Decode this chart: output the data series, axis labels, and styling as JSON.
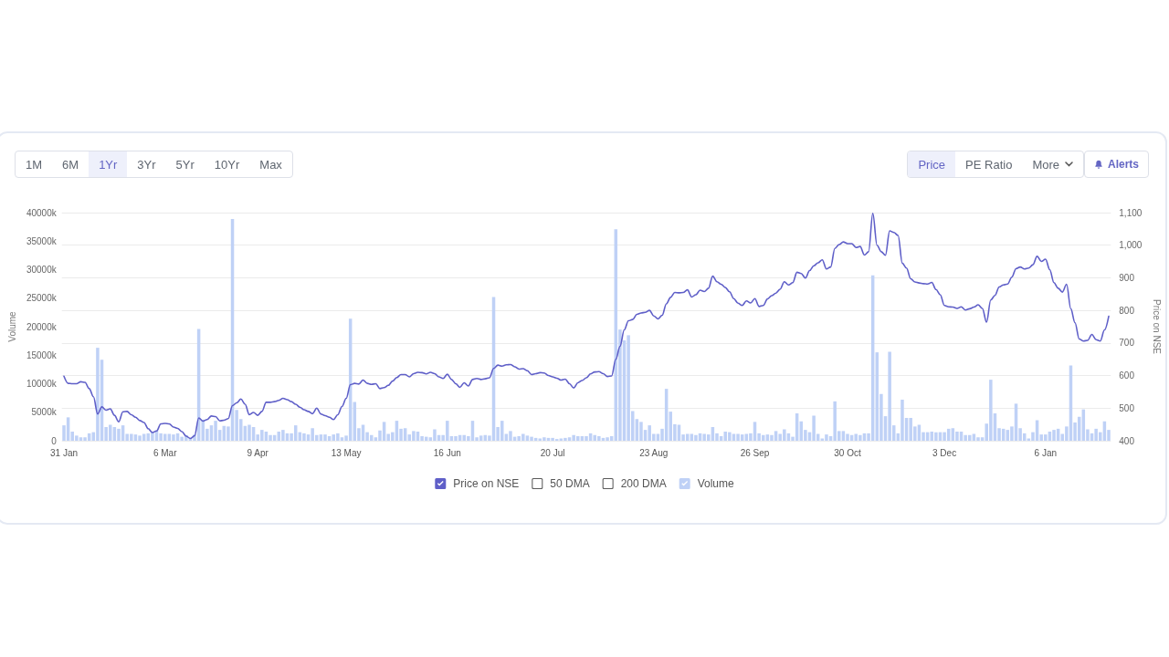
{
  "chart_data": {
    "type": "line",
    "categories": [
      "31 Jan",
      null,
      null,
      null,
      null,
      null,
      null,
      null,
      null,
      null,
      null,
      null,
      null,
      null,
      null,
      null,
      null,
      null,
      null,
      null,
      null,
      null,
      null,
      null,
      "6 Mar",
      null,
      null,
      null,
      null,
      null,
      null,
      null,
      null,
      null,
      null,
      null,
      null,
      null,
      null,
      null,
      null,
      null,
      null,
      null,
      null,
      null,
      "9 Apr",
      null,
      null,
      null,
      null,
      null,
      null,
      null,
      null,
      null,
      null,
      null,
      null,
      null,
      null,
      null,
      null,
      null,
      null,
      null,
      null,
      "13 May",
      null,
      null,
      null,
      null,
      null,
      null,
      null,
      null,
      null,
      null,
      null,
      null,
      null,
      null,
      null,
      null,
      null,
      null,
      null,
      null,
      null,
      null,
      null,
      "16 Jun",
      null,
      null,
      null,
      null,
      null,
      null,
      null,
      null,
      null,
      null,
      null,
      null,
      null,
      null,
      null,
      null,
      null,
      null,
      null,
      null,
      null,
      null,
      null,
      null,
      "20 Jul",
      null,
      null,
      null,
      null,
      null,
      null,
      null,
      null,
      null,
      null,
      null,
      null,
      null,
      null,
      null,
      null,
      null,
      null,
      null,
      null,
      null,
      null,
      null,
      "23 Aug",
      null,
      null,
      null,
      null,
      null,
      null,
      null,
      null,
      null,
      null,
      null,
      null,
      null,
      null,
      null,
      null,
      null,
      null,
      null,
      null,
      null,
      null,
      null,
      "26 Sep",
      null,
      null,
      null,
      null,
      null,
      null,
      null,
      null,
      null,
      null,
      null,
      null,
      null,
      null,
      null,
      null,
      null,
      null,
      null,
      null,
      null,
      "30 Oct",
      null,
      null,
      null,
      null,
      null,
      null,
      null,
      null,
      null,
      null,
      null,
      null,
      null,
      null,
      null,
      null,
      null,
      null,
      null,
      null,
      null,
      null,
      "3 Dec",
      null,
      null,
      null,
      null,
      null,
      null,
      null,
      null,
      null,
      null,
      null,
      null,
      null,
      null,
      null,
      null,
      null,
      null,
      null,
      null,
      null,
      null,
      null,
      "6 Jan",
      null,
      null,
      null,
      null,
      null,
      null,
      null,
      null,
      null,
      null,
      null,
      null,
      null,
      null,
      null
    ],
    "ylabel": "Volume",
    "y2label": "Price on NSE",
    "ylim": [
      0,
      40000
    ],
    "yticks": [
      0,
      {
        "value": 5000,
        "label": "5000k"
      },
      {
        "value": 10000,
        "label": "10000k"
      },
      {
        "value": 15000,
        "label": "15000k"
      },
      {
        "value": 20000,
        "label": "20000k"
      },
      {
        "value": 25000,
        "label": "25000k"
      },
      {
        "value": 30000,
        "label": "30000k"
      },
      {
        "value": 35000,
        "label": "35000k"
      },
      {
        "value": 40000,
        "label": "40000k"
      }
    ],
    "y2lim": [
      400,
      1100
    ],
    "y2ticks": [
      400,
      500,
      600,
      700,
      800,
      900,
      {
        "value": 1000,
        "label": "1,000"
      },
      {
        "value": 1100,
        "label": "1,100"
      }
    ],
    "grid": "y2",
    "legend": "bottom",
    "annotations": [
      "1M",
      "6M",
      "1Yr",
      "3Yr",
      "5Yr",
      "10Yr",
      "Max",
      "Price",
      "PE Ratio",
      "More",
      "Alerts"
    ],
    "series": [
      {
        "name": "Price on NSE",
        "axis": "y2",
        "color": "#5f5fc8",
        "values": [
          598,
          576,
          575,
          575,
          581,
          579,
          560,
          535,
          482,
          504,
          494,
          498,
          478,
          458,
          489,
          490,
          480,
          472,
          462,
          456,
          437,
          425,
          430,
          452,
          453,
          452,
          442,
          438,
          428,
          414,
          407,
          415,
          470,
          460,
          465,
          476,
          474,
          461,
          463,
          468,
          508,
          516,
          528,
          512,
          480,
          487,
          478,
          490,
          518,
          518,
          520,
          524,
          530,
          526,
          520,
          512,
          503,
          495,
          490,
          483,
          500,
          482,
          477,
          472,
          465,
          480,
          505,
          530,
          572,
          576,
          574,
          586,
          576,
          573,
          575,
          560,
          563,
          570,
          583,
          594,
          603,
          603,
          596,
          606,
          610,
          609,
          605,
          610,
          606,
          596,
          591,
          604,
          588,
          575,
          564,
          578,
          568,
          588,
          591,
          588,
          590,
          593,
          622,
          632,
          629,
          633,
          634,
          627,
          620,
          621,
          615,
          603,
          606,
          609,
          608,
          600,
          596,
          592,
          586,
          589,
          575,
          562,
          578,
          585,
          593,
          605,
          611,
          612,
          606,
          597,
          599,
          650,
          690,
          740,
          768,
          772,
          788,
          792,
          794,
          800,
          783,
          774,
          785,
          820,
          840,
          855,
          854,
          855,
          863,
          841,
          848,
          862,
          858,
          868,
          905,
          888,
          880,
          870,
          857,
          836,
          822,
          815,
          829,
          823,
          836,
          812,
          815,
          835,
          845,
          853,
          865,
          888,
          878,
          885,
          917,
          913,
          899,
          922,
          937,
          946,
          955,
          927,
          933,
          990,
          1002,
          1010,
          1005,
          1005,
          993,
          996,
          970,
          980,
          1098,
          1000,
          980,
          969,
          1044,
          1039,
          1030,
          945,
          930,
          897,
          887,
          884,
          882,
          881,
          886,
          864,
          848,
          815,
          811,
          810,
          806,
          811,
          801,
          805,
          810,
          817,
          806,
          764,
          832,
          846,
          872,
          878,
          881,
          902,
          928,
          933,
          927,
          930,
          940,
          966,
          950,
          957,
          925,
          885,
          868,
          856,
          880,
          805,
          762,
          712,
          706,
          708,
          726,
          710,
          706,
          740,
          782
        ]
      },
      {
        "name": "50 DMA",
        "axis": "y2",
        "values": [
          null,
          null,
          null,
          null,
          null,
          null,
          null,
          null,
          null,
          null,
          null,
          null,
          null,
          null,
          null,
          null,
          null,
          null,
          null,
          null,
          null,
          null,
          null,
          null,
          null,
          null,
          null,
          null,
          null,
          null,
          null,
          null,
          null,
          null,
          null,
          null,
          null,
          null,
          null,
          null,
          null,
          null,
          null,
          null,
          null,
          null,
          null,
          null,
          null,
          null,
          null,
          null,
          null,
          null,
          null,
          null,
          null,
          null,
          null,
          null,
          null,
          null,
          null,
          null,
          null,
          null,
          null,
          null,
          null,
          null,
          null,
          null,
          null,
          null,
          null,
          null,
          null,
          null,
          null,
          null,
          null,
          null,
          null,
          null,
          null,
          null,
          null,
          null,
          null,
          null,
          null,
          null,
          null,
          null,
          null,
          null,
          null,
          null,
          null,
          null,
          null,
          null,
          null,
          null,
          null,
          null,
          null,
          null,
          null,
          null,
          null,
          null,
          null,
          null,
          null,
          null,
          null,
          null,
          null,
          null,
          null,
          null,
          null,
          null,
          null,
          null,
          null,
          null,
          null,
          null,
          null,
          null,
          null,
          null,
          null,
          null,
          null,
          null,
          null,
          null,
          null,
          null,
          null,
          null,
          null,
          null,
          null,
          null,
          null,
          null,
          null,
          null,
          null,
          null,
          null,
          null,
          null,
          null,
          null,
          null,
          null,
          null,
          null,
          null,
          null,
          null,
          null,
          null,
          null,
          null,
          null,
          null,
          null,
          null,
          null,
          null,
          null,
          null,
          null,
          null,
          null,
          null,
          null,
          null,
          null,
          null,
          null,
          null,
          null,
          null,
          null,
          null,
          null,
          null,
          null,
          null,
          null,
          null,
          null,
          null,
          null,
          null,
          null,
          null,
          null,
          null,
          null,
          null,
          null,
          null,
          null,
          null,
          null,
          null,
          null,
          null,
          null,
          null,
          null,
          null,
          null,
          null,
          null,
          null,
          null,
          null,
          null,
          null,
          null,
          null,
          null,
          null,
          null,
          null,
          null,
          null,
          null,
          null,
          null,
          null,
          null,
          null,
          null,
          null,
          null,
          null,
          null,
          null,
          null
        ]
      },
      {
        "name": "200 DMA",
        "axis": "y2",
        "values": [
          null,
          null,
          null,
          null,
          null,
          null,
          null,
          null,
          null,
          null,
          null,
          null,
          null,
          null,
          null,
          null,
          null,
          null,
          null,
          null,
          null,
          null,
          null,
          null,
          null,
          null,
          null,
          null,
          null,
          null,
          null,
          null,
          null,
          null,
          null,
          null,
          null,
          null,
          null,
          null,
          null,
          null,
          null,
          null,
          null,
          null,
          null,
          null,
          null,
          null,
          null,
          null,
          null,
          null,
          null,
          null,
          null,
          null,
          null,
          null,
          null,
          null,
          null,
          null,
          null,
          null,
          null,
          null,
          null,
          null,
          null,
          null,
          null,
          null,
          null,
          null,
          null,
          null,
          null,
          null,
          null,
          null,
          null,
          null,
          null,
          null,
          null,
          null,
          null,
          null,
          null,
          null,
          null,
          null,
          null,
          null,
          null,
          null,
          null,
          null,
          null,
          null,
          null,
          null,
          null,
          null,
          null,
          null,
          null,
          null,
          null,
          null,
          null,
          null,
          null,
          null,
          null,
          null,
          null,
          null,
          null,
          null,
          null,
          null,
          null,
          null,
          null,
          null,
          null,
          null,
          null,
          null,
          null,
          null,
          null,
          null,
          null,
          null,
          null,
          null,
          null,
          null,
          null,
          null,
          null,
          null,
          null,
          null,
          null,
          null,
          null,
          null,
          null,
          null,
          null,
          null,
          null,
          null,
          null,
          null,
          null,
          null,
          null,
          null,
          null,
          null,
          null,
          null,
          null,
          null,
          null,
          null,
          null,
          null,
          null,
          null,
          null,
          null,
          null,
          null,
          null,
          null,
          null,
          null,
          null,
          null,
          null,
          null,
          null,
          null,
          null,
          null,
          null,
          null,
          null,
          null,
          null,
          null,
          null,
          null,
          null,
          null,
          null,
          null,
          null,
          null,
          null,
          null,
          null,
          null,
          null,
          null,
          null,
          null,
          null,
          null,
          null,
          null,
          null,
          null,
          null,
          null,
          null,
          null,
          null,
          null,
          null,
          null,
          null,
          null,
          null,
          null,
          null,
          null,
          null,
          null,
          null,
          null,
          null,
          null,
          null,
          null,
          null,
          null,
          null,
          null,
          null,
          null,
          null
        ]
      },
      {
        "name": "Volume",
        "type": "bar",
        "color": "#bfd1f6",
        "values": [
          2700,
          4100,
          1600,
          900,
          600,
          600,
          1300,
          1500,
          16300,
          14200,
          2400,
          2800,
          2400,
          2100,
          2700,
          1200,
          1200,
          1100,
          900,
          1200,
          1300,
          1600,
          1800,
          1300,
          1200,
          1200,
          1100,
          1300,
          700,
          1000,
          500,
          1100,
          19600,
          3700,
          2100,
          2700,
          3500,
          1900,
          2600,
          2500,
          38900,
          5400,
          3800,
          2600,
          2800,
          2400,
          1100,
          1900,
          1600,
          1000,
          1000,
          1600,
          1900,
          1300,
          1300,
          2700,
          1500,
          1300,
          1100,
          2200,
          1000,
          1100,
          1100,
          800,
          1100,
          1300,
          600,
          900,
          21400,
          6800,
          2200,
          2800,
          1500,
          1000,
          600,
          1800,
          3300,
          1200,
          1500,
          3500,
          2100,
          2200,
          1100,
          1700,
          1600,
          800,
          700,
          600,
          2000,
          1000,
          1000,
          3500,
          800,
          800,
          1000,
          1000,
          800,
          3500,
          600,
          900,
          1000,
          900,
          25200,
          2400,
          3500,
          1200,
          1700,
          700,
          800,
          1200,
          900,
          700,
          500,
          400,
          600,
          500,
          500,
          300,
          400,
          500,
          600,
          1000,
          800,
          800,
          800,
          1300,
          1000,
          800,
          500,
          600,
          800,
          37100,
          19500,
          17600,
          18500,
          5200,
          3800,
          3300,
          1900,
          2700,
          1200,
          1200,
          2100,
          9100,
          5100,
          2900,
          2800,
          1100,
          1200,
          1200,
          1000,
          1300,
          1200,
          1100,
          2400,
          1300,
          800,
          1600,
          1500,
          1200,
          1200,
          1100,
          1200,
          1300,
          3300,
          1300,
          1000,
          1100,
          1000,
          1700,
          1200,
          2000,
          1300,
          700,
          4800,
          3400,
          1900,
          1500,
          4400,
          1200,
          400,
          1100,
          800,
          6900,
          1700,
          1700,
          1200,
          1000,
          1200,
          1000,
          1300,
          1300,
          29000,
          15500,
          8200,
          4300,
          15600,
          2700,
          1300,
          7200,
          4000,
          4000,
          2500,
          2800,
          1500,
          1500,
          1600,
          1500,
          1500,
          1500,
          2100,
          2200,
          1600,
          1600,
          1000,
          1000,
          1200,
          600,
          600,
          3000,
          10700,
          4800,
          2200,
          2100,
          1900,
          2500,
          6500,
          2200,
          1300,
          400,
          1500,
          3600,
          1100,
          1100,
          1600,
          1900,
          2100,
          1200,
          2500,
          13200,
          3200,
          4200,
          5500,
          2000,
          1300,
          2100,
          1500,
          3400,
          1900
        ]
      }
    ]
  }
}
